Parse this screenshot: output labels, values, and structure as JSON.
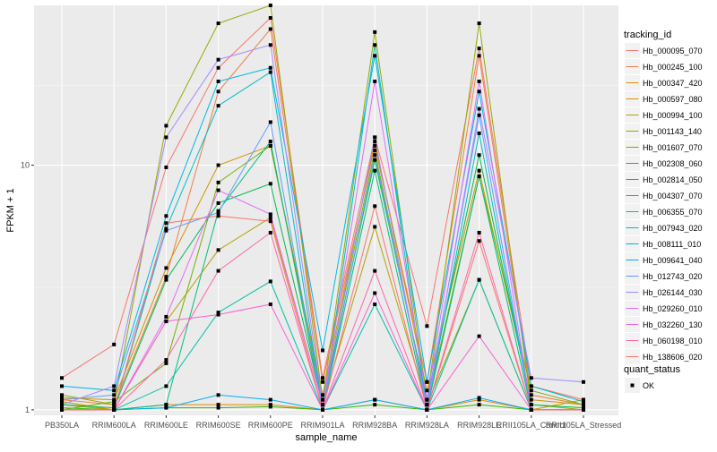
{
  "chart_data": {
    "type": "line",
    "xlabel": "sample_name",
    "ylabel": "FPKM + 1",
    "y_scale": "log10",
    "ylim": [
      0.95,
      45
    ],
    "y_ticks": [
      1,
      10
    ],
    "y_tick_labels": [
      "1",
      "10"
    ],
    "categories": [
      "PB350LA",
      "RRIM600LA",
      "RRIM600LE",
      "RRIM600SE",
      "RRIM600PE",
      "RRIM901LA",
      "RRIM928BA",
      "RRIM928LA",
      "RRIM928LE",
      "RRII105LA_Control",
      "RRII105LA_Stressed"
    ],
    "grid": true,
    "legend_position": "right",
    "legend_title": "tracking_id",
    "shape_legend_title": "quant_status",
    "shape_legend_items": [
      "OK"
    ],
    "series": [
      {
        "name": "Hb_000095_070",
        "color": "#F8766D",
        "values": [
          1.35,
          1.85,
          9.8,
          25.0,
          40.0,
          1.35,
          13.0,
          2.2,
          30.0,
          1.25,
          1.1
        ]
      },
      {
        "name": "Hb_000245_100",
        "color": "#EF7F49",
        "values": [
          1.1,
          1.05,
          3.5,
          20.0,
          36.0,
          1.3,
          12.0,
          1.3,
          28.0,
          1.15,
          1.05
        ]
      },
      {
        "name": "Hb_000347_420",
        "color": "#E28A00",
        "values": [
          1.05,
          1.0,
          1.05,
          1.05,
          1.05,
          1.0,
          1.1,
          1.0,
          1.1,
          1.0,
          1.0
        ]
      },
      {
        "name": "Hb_000597_080",
        "color": "#D09400",
        "values": [
          1.12,
          1.1,
          3.8,
          10.0,
          12.0,
          1.15,
          12.5,
          1.2,
          9.5,
          1.1,
          1.05
        ]
      },
      {
        "name": "Hb_000994_100",
        "color": "#B79F00",
        "values": [
          1.08,
          1.0,
          2.3,
          4.5,
          6.1,
          1.05,
          5.6,
          1.05,
          3.4,
          1.0,
          1.1
        ]
      },
      {
        "name": "Hb_001143_140",
        "color": "#9AA800",
        "values": [
          1.15,
          1.05,
          14.5,
          38.0,
          45.0,
          1.1,
          35.0,
          1.1,
          38.0,
          1.05,
          1.0
        ]
      },
      {
        "name": "Hb_001607_070",
        "color": "#74B000",
        "values": [
          1.0,
          1.08,
          1.55,
          8.5,
          12.0,
          1.1,
          11.5,
          1.05,
          9.0,
          1.2,
          1.05
        ]
      },
      {
        "name": "Hb_002308_060",
        "color": "#39B600",
        "values": [
          1.02,
          1.0,
          1.02,
          1.02,
          1.03,
          1.0,
          1.05,
          1.0,
          1.05,
          1.0,
          1.0
        ]
      },
      {
        "name": "Hb_002814_050",
        "color": "#00BB4E",
        "values": [
          1.05,
          1.02,
          3.4,
          7.0,
          8.4,
          1.05,
          10.5,
          1.1,
          11.0,
          1.05,
          1.02
        ]
      },
      {
        "name": "Hb_004307_070",
        "color": "#00BF7D",
        "values": [
          1.0,
          1.0,
          1.05,
          6.5,
          12.5,
          1.0,
          9.5,
          1.0,
          9.0,
          1.0,
          1.0
        ]
      },
      {
        "name": "Hb_006355_070",
        "color": "#00C1A3",
        "values": [
          1.0,
          1.0,
          1.25,
          2.5,
          3.35,
          1.0,
          2.7,
          1.0,
          3.4,
          1.0,
          1.0
        ]
      },
      {
        "name": "Hb_007943_020",
        "color": "#00BFC4",
        "values": [
          1.0,
          1.0,
          5.5,
          17.5,
          24.0,
          1.0,
          31.0,
          1.0,
          13.5,
          1.0,
          1.0
        ]
      },
      {
        "name": "Hb_008111_010",
        "color": "#00B8E5",
        "values": [
          1.25,
          1.2,
          6.2,
          22.0,
          25.0,
          1.75,
          28.0,
          1.3,
          20.0,
          1.25,
          1.08
        ]
      },
      {
        "name": "Hb_009641_040",
        "color": "#00ADFA",
        "values": [
          1.0,
          1.0,
          1.02,
          1.15,
          1.1,
          1.0,
          1.1,
          1.0,
          1.12,
          1.0,
          1.0
        ]
      },
      {
        "name": "Hb_012743_020",
        "color": "#619CFF",
        "values": [
          1.1,
          1.15,
          5.4,
          6.4,
          15.0,
          1.0,
          11.0,
          1.05,
          16.0,
          1.0,
          1.0
        ]
      },
      {
        "name": "Hb_026144_030",
        "color": "#A58AFF",
        "values": [
          1.05,
          1.25,
          13.0,
          27.0,
          31.0,
          1.05,
          13.0,
          1.0,
          17.0,
          1.35,
          1.3
        ]
      },
      {
        "name": "Hb_029260_010",
        "color": "#DF70F8",
        "values": [
          1.0,
          1.0,
          2.4,
          7.9,
          6.3,
          1.05,
          22.0,
          1.1,
          22.0,
          1.0,
          1.0
        ]
      },
      {
        "name": "Hb_032260_130",
        "color": "#FB61D7",
        "values": [
          1.0,
          1.0,
          2.3,
          2.45,
          2.7,
          1.0,
          3.0,
          1.0,
          2.0,
          1.0,
          1.0
        ]
      },
      {
        "name": "Hb_060198_010",
        "color": "#FF66A8",
        "values": [
          1.0,
          1.0,
          1.6,
          3.7,
          5.3,
          1.0,
          3.7,
          1.0,
          5.3,
          1.0,
          1.0
        ]
      },
      {
        "name": "Hb_138606_020",
        "color": "#F8766D",
        "values": [
          1.0,
          1.0,
          5.8,
          6.2,
          5.9,
          1.0,
          6.8,
          1.0,
          4.9,
          1.0,
          1.0
        ]
      }
    ]
  }
}
